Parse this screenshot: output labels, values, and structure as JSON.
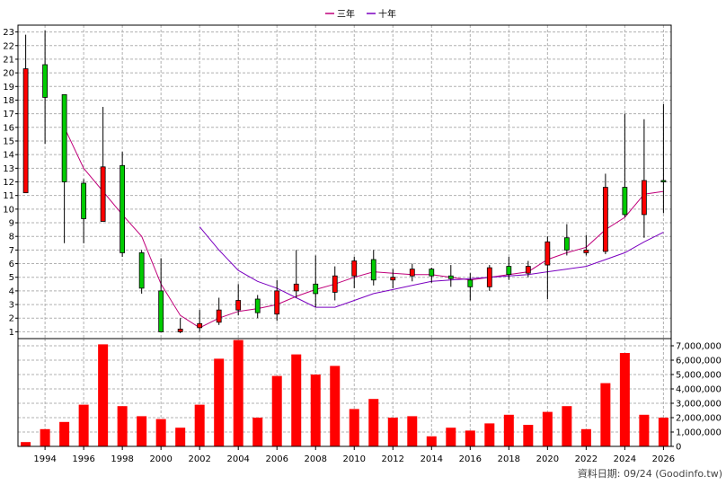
{
  "legend": {
    "items": [
      {
        "label": "三年",
        "color": "#c0007a"
      },
      {
        "label": "十年",
        "color": "#7a00c0"
      }
    ]
  },
  "footer": {
    "text": "資料日期: 09/24  (Goodinfo.tw)"
  },
  "chart_data": [
    {
      "type": "candlestick",
      "x_ticks": [
        "1994",
        "1996",
        "1998",
        "2000",
        "2002",
        "2004",
        "2006",
        "2008",
        "2010",
        "2012",
        "2014",
        "2016",
        "2018",
        "2020",
        "2022",
        "2024",
        "2026"
      ],
      "y_ticks": [
        1,
        2,
        3,
        4,
        5,
        6,
        7,
        8,
        9,
        10,
        11,
        12,
        13,
        14,
        15,
        16,
        17,
        18,
        19,
        20,
        21,
        22,
        23
      ],
      "ylim": [
        0.5,
        23.5
      ],
      "xlim": [
        1992.6,
        2026.4
      ],
      "up_color": "#ff0000",
      "down_color": "#00cc00",
      "candles": [
        {
          "year": 1993,
          "open": 11.2,
          "close": 20.3,
          "high": 22.8,
          "low": 11.2
        },
        {
          "year": 1994,
          "open": 20.6,
          "close": 18.2,
          "high": 23.1,
          "low": 14.8
        },
        {
          "year": 1995,
          "open": 18.4,
          "close": 12.0,
          "high": 18.4,
          "low": 7.5
        },
        {
          "year": 1996,
          "open": 11.9,
          "close": 9.3,
          "high": 12.2,
          "low": 7.5
        },
        {
          "year": 1997,
          "open": 9.1,
          "close": 13.1,
          "high": 17.5,
          "low": 9.1
        },
        {
          "year": 1998,
          "open": 13.2,
          "close": 6.8,
          "high": 14.2,
          "low": 6.5
        },
        {
          "year": 1999,
          "open": 6.8,
          "close": 4.2,
          "high": 7.0,
          "low": 3.8
        },
        {
          "year": 2000,
          "open": 4.0,
          "close": 1.0,
          "high": 6.4,
          "low": 1.0
        },
        {
          "year": 2001,
          "open": 1.0,
          "close": 1.2,
          "high": 2.0,
          "low": 0.9
        },
        {
          "year": 2002,
          "open": 1.3,
          "close": 1.6,
          "high": 2.6,
          "low": 1.0
        },
        {
          "year": 2003,
          "open": 1.7,
          "close": 2.6,
          "high": 3.5,
          "low": 1.5
        },
        {
          "year": 2004,
          "open": 2.6,
          "close": 3.3,
          "high": 4.5,
          "low": 2.2
        },
        {
          "year": 2005,
          "open": 3.4,
          "close": 2.4,
          "high": 3.7,
          "low": 2.0
        },
        {
          "year": 2006,
          "open": 2.3,
          "close": 4.0,
          "high": 4.8,
          "low": 1.8
        },
        {
          "year": 2007,
          "open": 4.0,
          "close": 4.5,
          "high": 7.0,
          "low": 3.5
        },
        {
          "year": 2008,
          "open": 4.5,
          "close": 3.8,
          "high": 6.6,
          "low": 2.8
        },
        {
          "year": 2009,
          "open": 3.9,
          "close": 5.1,
          "high": 5.8,
          "low": 3.3
        },
        {
          "year": 2010,
          "open": 5.1,
          "close": 6.2,
          "high": 6.5,
          "low": 4.2
        },
        {
          "year": 2011,
          "open": 6.3,
          "close": 4.8,
          "high": 7.0,
          "low": 4.4
        },
        {
          "year": 2012,
          "open": 4.8,
          "close": 5.0,
          "high": 5.6,
          "low": 4.2
        },
        {
          "year": 2013,
          "open": 5.1,
          "close": 5.6,
          "high": 6.0,
          "low": 4.7
        },
        {
          "year": 2014,
          "open": 5.6,
          "close": 5.1,
          "high": 5.7,
          "low": 4.6
        },
        {
          "year": 2015,
          "open": 5.1,
          "close": 4.9,
          "high": 5.9,
          "low": 4.3
        },
        {
          "year": 2016,
          "open": 4.8,
          "close": 4.3,
          "high": 5.3,
          "low": 3.3
        },
        {
          "year": 2017,
          "open": 4.3,
          "close": 5.7,
          "high": 5.9,
          "low": 4.0
        },
        {
          "year": 2018,
          "open": 5.8,
          "close": 5.2,
          "high": 6.5,
          "low": 4.8
        },
        {
          "year": 2019,
          "open": 5.3,
          "close": 5.8,
          "high": 6.2,
          "low": 5.0
        },
        {
          "year": 2020,
          "open": 5.9,
          "close": 7.6,
          "high": 8.0,
          "low": 3.4
        },
        {
          "year": 2021,
          "open": 7.9,
          "close": 7.0,
          "high": 8.9,
          "low": 6.6
        },
        {
          "year": 2022,
          "open": 6.8,
          "close": 7.0,
          "high": 8.1,
          "low": 6.6
        },
        {
          "year": 2023,
          "open": 6.9,
          "close": 11.6,
          "high": 12.6,
          "low": 6.7
        },
        {
          "year": 2024,
          "open": 11.6,
          "close": 9.6,
          "high": 17.0,
          "low": 9.4
        },
        {
          "year": 2025,
          "open": 9.6,
          "close": 12.1,
          "high": 16.6,
          "low": 7.9
        },
        {
          "year": 2026,
          "open": 12.1,
          "close": 12.0,
          "high": 17.7,
          "low": 9.7
        }
      ],
      "series": [
        {
          "name": "三年",
          "color": "#c0007a",
          "points": [
            [
              1995,
              16.0
            ],
            [
              1996,
              13.0
            ],
            [
              1997,
              11.3
            ],
            [
              1998,
              9.6
            ],
            [
              1999,
              8.0
            ],
            [
              2000,
              4.5
            ],
            [
              2001,
              2.2
            ],
            [
              2002,
              1.3
            ],
            [
              2003,
              2.0
            ],
            [
              2004,
              2.5
            ],
            [
              2005,
              2.7
            ],
            [
              2006,
              3.0
            ],
            [
              2007,
              3.6
            ],
            [
              2008,
              4.1
            ],
            [
              2009,
              4.5
            ],
            [
              2010,
              5.0
            ],
            [
              2011,
              5.4
            ],
            [
              2012,
              5.3
            ],
            [
              2013,
              5.2
            ],
            [
              2014,
              5.2
            ],
            [
              2015,
              5.0
            ],
            [
              2016,
              4.8
            ],
            [
              2017,
              5.0
            ],
            [
              2018,
              5.2
            ],
            [
              2019,
              5.4
            ],
            [
              2020,
              6.3
            ],
            [
              2021,
              6.8
            ],
            [
              2022,
              7.2
            ],
            [
              2023,
              8.5
            ],
            [
              2024,
              9.4
            ],
            [
              2025,
              11.1
            ],
            [
              2026,
              11.3
            ]
          ]
        },
        {
          "name": "十年",
          "color": "#7a00c0",
          "points": [
            [
              2002,
              8.7
            ],
            [
              2003,
              7.0
            ],
            [
              2004,
              5.5
            ],
            [
              2005,
              4.7
            ],
            [
              2006,
              4.2
            ],
            [
              2007,
              3.5
            ],
            [
              2008,
              2.8
            ],
            [
              2009,
              2.8
            ],
            [
              2010,
              3.3
            ],
            [
              2011,
              3.8
            ],
            [
              2012,
              4.1
            ],
            [
              2013,
              4.4
            ],
            [
              2014,
              4.7
            ],
            [
              2015,
              4.8
            ],
            [
              2016,
              4.9
            ],
            [
              2017,
              5.0
            ],
            [
              2018,
              5.1
            ],
            [
              2019,
              5.2
            ],
            [
              2020,
              5.4
            ],
            [
              2021,
              5.6
            ],
            [
              2022,
              5.8
            ],
            [
              2023,
              6.3
            ],
            [
              2024,
              6.8
            ],
            [
              2025,
              7.6
            ],
            [
              2026,
              8.3
            ]
          ]
        }
      ]
    },
    {
      "type": "bar",
      "color": "#ff0000",
      "x_ticks": [
        "1994",
        "1996",
        "1998",
        "2000",
        "2002",
        "2004",
        "2006",
        "2008",
        "2010",
        "2012",
        "2014",
        "2016",
        "2018",
        "2020",
        "2022",
        "2024",
        "2026"
      ],
      "y_ticks": [
        "0",
        "1,000,000",
        "2,000,000",
        "3,000,000",
        "4,000,000",
        "5,000,000",
        "6,000,000",
        "7,000,000"
      ],
      "ylim": [
        0,
        7500000
      ],
      "xlim": [
        1992.6,
        2026.4
      ],
      "x": [
        1993,
        1994,
        1995,
        1996,
        1997,
        1998,
        1999,
        2000,
        2001,
        2002,
        2003,
        2004,
        2005,
        2006,
        2007,
        2008,
        2009,
        2010,
        2011,
        2012,
        2013,
        2014,
        2015,
        2016,
        2017,
        2018,
        2019,
        2020,
        2021,
        2022,
        2023,
        2024,
        2025,
        2026
      ],
      "values": [
        300000,
        1200000,
        1700000,
        2900000,
        7100000,
        2800000,
        2100000,
        1900000,
        1300000,
        2900000,
        6100000,
        7400000,
        2000000,
        4900000,
        6400000,
        5000000,
        5600000,
        2600000,
        3300000,
        2000000,
        2100000,
        700000,
        1300000,
        1100000,
        1600000,
        2200000,
        1500000,
        2400000,
        2800000,
        1200000,
        4400000,
        6500000,
        2200000,
        2000000
      ]
    }
  ]
}
